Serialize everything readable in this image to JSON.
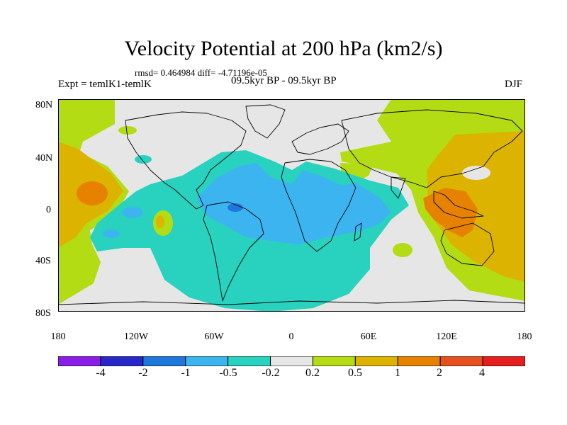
{
  "title": "Velocity Potential at 200 hPa (km2/s)",
  "stats": "rmsd= 0.464984 diff= -4.71196e-05",
  "experiment": "Expt = temlK1-temlK",
  "period": "09.5kyr BP - 09.5kyr BP",
  "season": "DJF",
  "lat_labels": [
    "80N",
    "40N",
    "0",
    "40S",
    "80S"
  ],
  "lon_labels": [
    "180",
    "120W",
    "60W",
    "0",
    "60E",
    "120E",
    "180"
  ],
  "colorbar": {
    "labels": [
      "-4",
      "-2",
      "-1",
      "-0.5",
      "-0.2",
      "0.2",
      "0.5",
      "1",
      "2",
      "4"
    ],
    "colors": [
      "#8a1ee6",
      "#2828c8",
      "#1e78dc",
      "#3cb4f0",
      "#28d2be",
      "#e6e6e6",
      "#b4dc14",
      "#dcb400",
      "#e68200",
      "#e6501e",
      "#e61e1e"
    ]
  },
  "map_colors": {
    "background": "#e6e6e6",
    "neg_0_2": "#28d2be",
    "neg_0_5": "#3cb4f0",
    "neg_1": "#1e78dc",
    "pos_0_2": "#b4dc14",
    "pos_0_5": "#dcb400",
    "pos_1": "#e68200"
  }
}
